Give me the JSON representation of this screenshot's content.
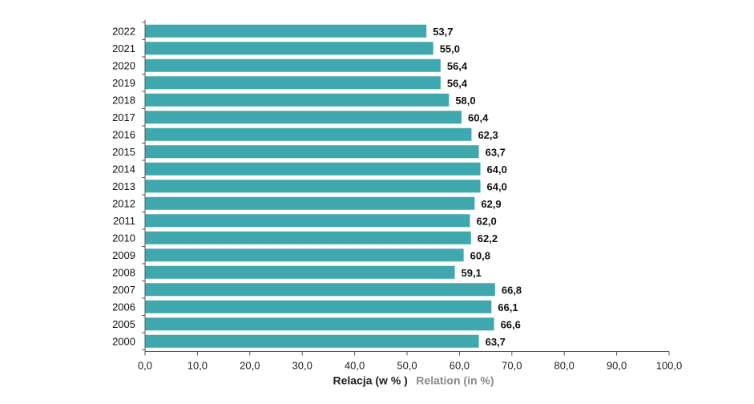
{
  "colors": {
    "bar": "#3ea8ae",
    "axis": "#555555"
  },
  "chart_data": {
    "type": "bar",
    "orientation": "horizontal",
    "title": "",
    "categories": [
      "2022",
      "2021",
      "2020",
      "2019",
      "2018",
      "2017",
      "2016",
      "2015",
      "2014",
      "2013",
      "2012",
      "2011",
      "2010",
      "2009",
      "2008",
      "2007",
      "2006",
      "2005",
      "2000"
    ],
    "values": [
      53.7,
      55.0,
      56.4,
      56.4,
      58.0,
      60.4,
      62.3,
      63.7,
      64.0,
      64.0,
      62.9,
      62.0,
      62.2,
      60.8,
      59.1,
      66.8,
      66.1,
      66.6,
      63.7
    ],
    "value_labels": [
      "53,7",
      "55,0",
      "56,4",
      "56,4",
      "58,0",
      "60,4",
      "62,3",
      "63,7",
      "64,0",
      "64,0",
      "62,9",
      "62,0",
      "62,2",
      "60,8",
      "59,1",
      "66,8",
      "66,1",
      "66,6",
      "63,7"
    ],
    "xlim": [
      0,
      100
    ],
    "xticks": [
      0,
      10,
      20,
      30,
      40,
      50,
      60,
      70,
      80,
      90,
      100
    ],
    "xtick_labels": [
      "0,0",
      "10,0",
      "20,0",
      "30,0",
      "40,0",
      "50,0",
      "60,0",
      "70,0",
      "80,0",
      "90,0",
      "100,0"
    ],
    "xlabel_pl": "Relacja (w % )",
    "xlabel_en": "Relation (in %)",
    "ylabel": "",
    "grid": false
  }
}
